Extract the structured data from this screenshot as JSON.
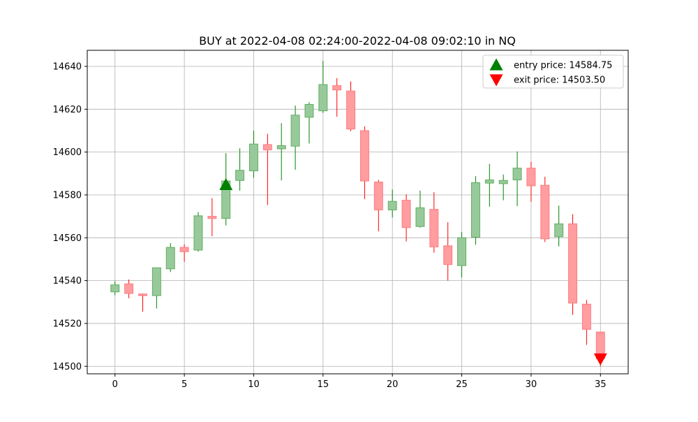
{
  "chart_data": {
    "type": "candlestick",
    "title": "BUY at 2022-04-08 02:24:00-2022-04-08 09:02:10 in NQ",
    "xlabel": "",
    "ylabel": "",
    "xlim": [
      -2,
      37
    ],
    "ylim": [
      14496.5,
      14647.5
    ],
    "x_ticks": [
      0,
      5,
      10,
      15,
      20,
      25,
      30,
      35
    ],
    "y_ticks": [
      14500,
      14520,
      14540,
      14560,
      14580,
      14600,
      14620,
      14640
    ],
    "grid": true,
    "legend_position": "top-right",
    "colors": {
      "up_body": "#98c99b",
      "up_edge": "#5fae5f",
      "up_wick": "#008000",
      "down_body": "#ff9da0",
      "down_edge": "#ff7b7f",
      "down_wick": "#ff0000",
      "entry_marker": "#008000",
      "exit_marker": "#ff0000",
      "grid": "#b0b0b0"
    },
    "candles": [
      {
        "x": 0,
        "open": 14534.75,
        "high": 14539.75,
        "low": 14533.25,
        "close": 14538.0
      },
      {
        "x": 1,
        "open": 14538.5,
        "high": 14540.5,
        "low": 14531.75,
        "close": 14534.0
      },
      {
        "x": 2,
        "open": 14533.75,
        "high": 14534.0,
        "low": 14525.5,
        "close": 14533.0
      },
      {
        "x": 3,
        "open": 14533.0,
        "high": 14546.0,
        "low": 14527.0,
        "close": 14546.0
      },
      {
        "x": 4,
        "open": 14545.5,
        "high": 14557.5,
        "low": 14544.0,
        "close": 14555.5
      },
      {
        "x": 5,
        "open": 14555.5,
        "high": 14557.0,
        "low": 14548.75,
        "close": 14553.5
      },
      {
        "x": 6,
        "open": 14554.25,
        "high": 14572.0,
        "low": 14553.5,
        "close": 14570.25
      },
      {
        "x": 7,
        "open": 14570.0,
        "high": 14578.5,
        "low": 14560.75,
        "close": 14569.0
      },
      {
        "x": 8,
        "open": 14569.0,
        "high": 14599.5,
        "low": 14565.75,
        "close": 14586.5
      },
      {
        "x": 9,
        "open": 14586.75,
        "high": 14601.75,
        "low": 14582.0,
        "close": 14591.5
      },
      {
        "x": 10,
        "open": 14591.25,
        "high": 14610.0,
        "low": 14588.0,
        "close": 14603.75
      },
      {
        "x": 11,
        "open": 14603.5,
        "high": 14608.5,
        "low": 14575.25,
        "close": 14601.0
      },
      {
        "x": 12,
        "open": 14601.5,
        "high": 14613.5,
        "low": 14586.75,
        "close": 14603.0
      },
      {
        "x": 13,
        "open": 14602.75,
        "high": 14621.75,
        "low": 14591.75,
        "close": 14617.25
      },
      {
        "x": 14,
        "open": 14616.25,
        "high": 14623.25,
        "low": 14604.0,
        "close": 14622.25
      },
      {
        "x": 15,
        "open": 14619.25,
        "high": 14642.5,
        "low": 14618.25,
        "close": 14631.5
      },
      {
        "x": 16,
        "open": 14631.0,
        "high": 14634.5,
        "low": 14616.5,
        "close": 14629.0
      },
      {
        "x": 17,
        "open": 14628.5,
        "high": 14633.0,
        "low": 14609.75,
        "close": 14610.75
      },
      {
        "x": 18,
        "open": 14610.0,
        "high": 14612.0,
        "low": 14578.0,
        "close": 14586.5
      },
      {
        "x": 19,
        "open": 14586.0,
        "high": 14587.0,
        "low": 14563.0,
        "close": 14573.0
      },
      {
        "x": 20,
        "open": 14573.0,
        "high": 14582.5,
        "low": 14569.5,
        "close": 14577.0
      },
      {
        "x": 21,
        "open": 14577.5,
        "high": 14580.25,
        "low": 14558.25,
        "close": 14564.75
      },
      {
        "x": 22,
        "open": 14565.25,
        "high": 14582.0,
        "low": 14564.75,
        "close": 14574.0
      },
      {
        "x": 23,
        "open": 14573.25,
        "high": 14581.25,
        "low": 14553.0,
        "close": 14555.75
      },
      {
        "x": 24,
        "open": 14556.25,
        "high": 14567.25,
        "low": 14540.0,
        "close": 14547.5
      },
      {
        "x": 25,
        "open": 14547.0,
        "high": 14562.75,
        "low": 14541.5,
        "close": 14560.0
      },
      {
        "x": 26,
        "open": 14560.25,
        "high": 14588.75,
        "low": 14556.75,
        "close": 14585.75
      },
      {
        "x": 27,
        "open": 14585.5,
        "high": 14594.5,
        "low": 14574.5,
        "close": 14587.0
      },
      {
        "x": 28,
        "open": 14585.25,
        "high": 14589.5,
        "low": 14577.5,
        "close": 14586.75
      },
      {
        "x": 29,
        "open": 14587.0,
        "high": 14600.25,
        "low": 14574.75,
        "close": 14592.5
      },
      {
        "x": 30,
        "open": 14592.5,
        "high": 14595.5,
        "low": 14576.75,
        "close": 14584.25
      },
      {
        "x": 31,
        "open": 14584.5,
        "high": 14588.5,
        "low": 14558.0,
        "close": 14559.5
      },
      {
        "x": 32,
        "open": 14560.5,
        "high": 14575.0,
        "low": 14556.0,
        "close": 14566.5
      },
      {
        "x": 33,
        "open": 14566.5,
        "high": 14571.0,
        "low": 14524.0,
        "close": 14529.5
      },
      {
        "x": 34,
        "open": 14529.0,
        "high": 14531.0,
        "low": 14510.0,
        "close": 14517.25
      },
      {
        "x": 35,
        "open": 14516.0,
        "high": 14516.0,
        "low": 14500.0,
        "close": 14503.5
      }
    ],
    "markers": [
      {
        "label": "entry price: 14584.75",
        "x": 8,
        "y": 14584.75,
        "direction": "up"
      },
      {
        "label": "exit price: 14503.50",
        "x": 35,
        "y": 14503.5,
        "direction": "down"
      }
    ]
  }
}
